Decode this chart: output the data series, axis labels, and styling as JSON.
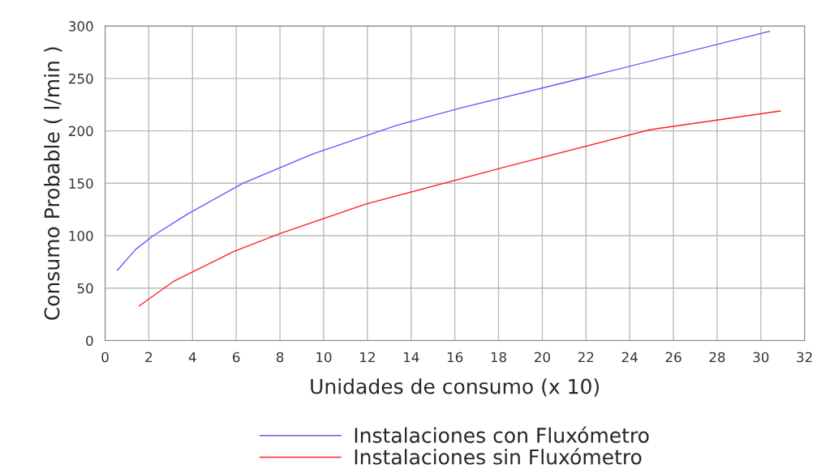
{
  "chart_data": {
    "type": "line",
    "xlabel": "Unidades de consumo (x 10)",
    "ylabel": "Consumo Probable ( l/min )",
    "series": [
      {
        "name": "Instalaciones con Fluxómetro",
        "color": "#5a5aff",
        "x": [
          0.56,
          1.4,
          2.2,
          3.8,
          6.3,
          9.5,
          13.3,
          16.3,
          21.2,
          30.4
        ],
        "values": [
          67,
          87,
          100,
          121,
          150,
          178,
          205,
          222,
          247,
          295
        ]
      },
      {
        "name": "Instalaciones sin Fluxómetro",
        "color": "#ff2020",
        "x": [
          1.56,
          3.1,
          4.1,
          5.9,
          8,
          11.9,
          18.2,
          24.9,
          30.9
        ],
        "values": [
          33,
          56,
          66.5,
          85,
          102,
          130,
          165,
          201,
          219
        ]
      }
    ],
    "xlim": [
      0,
      32
    ],
    "xticks": [
      0,
      2,
      4,
      6,
      8,
      10,
      12,
      14,
      16,
      18,
      20,
      22,
      24,
      26,
      28,
      30,
      32
    ],
    "ylim": [
      0,
      300
    ],
    "yticks": [
      0,
      50,
      100,
      150,
      200,
      250,
      300
    ],
    "grid": true,
    "legend": "bottom",
    "line_style": "solid",
    "marker": "none"
  }
}
